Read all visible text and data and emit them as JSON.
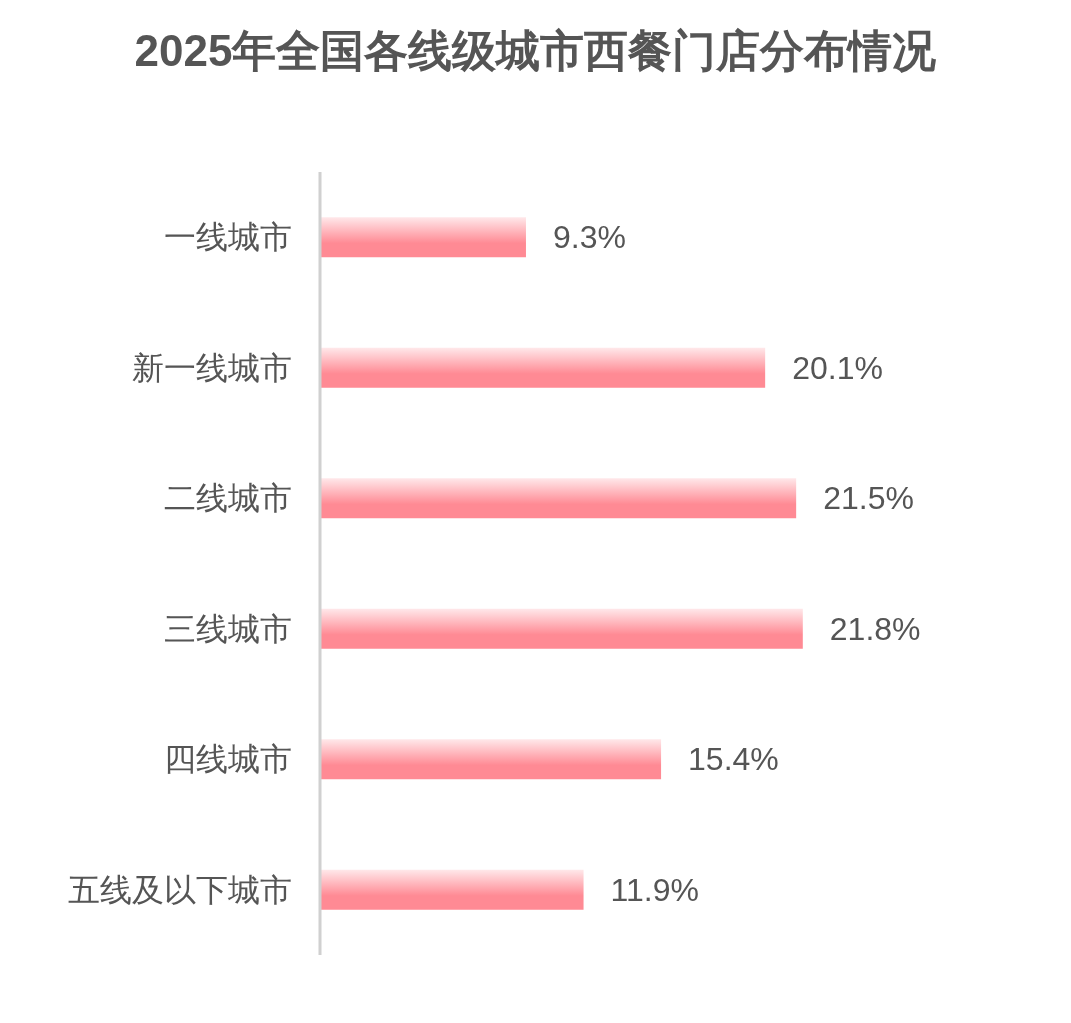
{
  "chart_data": {
    "type": "bar",
    "orientation": "horizontal",
    "title": "2025年全国各线级城市西餐门店分布情况",
    "categories": [
      "一线城市",
      "新一线城市",
      "二线城市",
      "三线城市",
      "四线城市",
      "五线及以下城市"
    ],
    "values": [
      9.3,
      20.1,
      21.5,
      21.8,
      15.4,
      11.9
    ],
    "value_labels": [
      "9.3%",
      "20.1%",
      "21.5%",
      "21.8%",
      "15.4%",
      "11.9%"
    ],
    "color": "#ff8a94"
  }
}
